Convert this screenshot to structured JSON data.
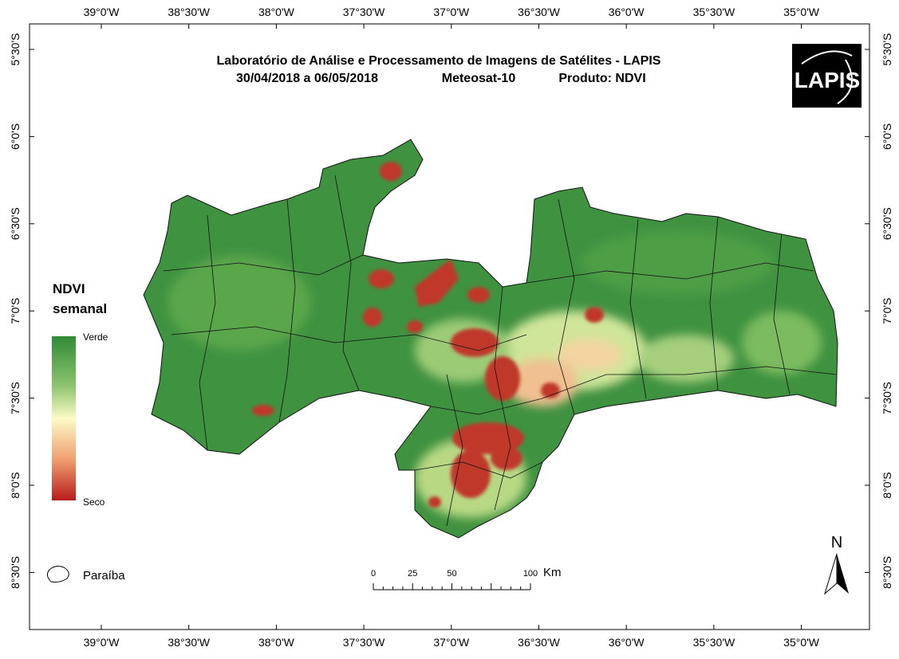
{
  "title": "Laboratório de Análise e Processamento de Imagens de Satélites - LAPIS",
  "subtitle": [
    "30/04/2018  a 06/05/2018",
    "Meteosat-10",
    "Produto: NDVI"
  ],
  "logo": "LAPIS",
  "longitude_labels": [
    "39°0'W",
    "38°30'W",
    "38°0'W",
    "37°30'W",
    "37°0'W",
    "36°30'W",
    "36°0'W",
    "35°30'W",
    "35°0'W"
  ],
  "latitude_labels": [
    "5°30'S",
    "6°0'S",
    "6°30'S",
    "7°0'S",
    "7°30'S",
    "8°0'S",
    "8°30'S"
  ],
  "legend": {
    "title": [
      "NDVI",
      "semanal"
    ],
    "high": "Verde",
    "low": "Seco"
  },
  "scale_bar": {
    "ticks": [
      "0",
      "25",
      "50",
      "100"
    ],
    "unit": "Km"
  },
  "north": "N",
  "boundary_label": "Paraíba"
}
